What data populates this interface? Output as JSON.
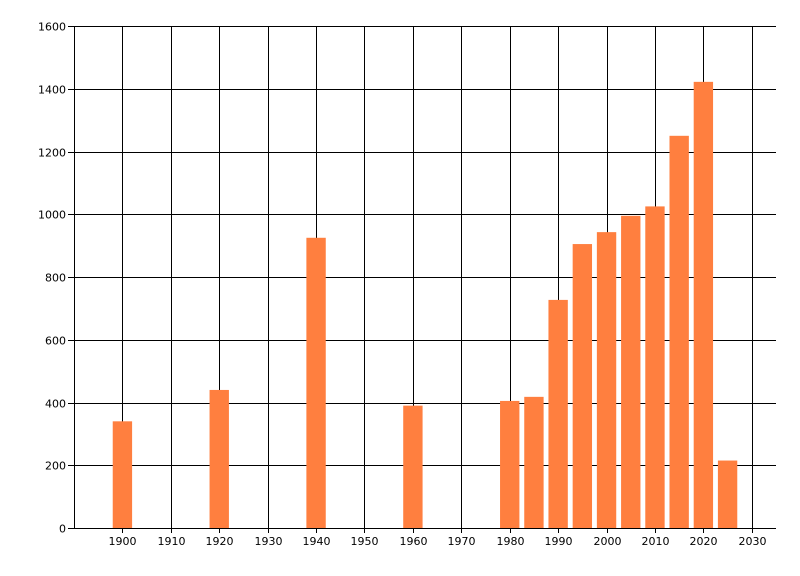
{
  "chart_data": {
    "type": "bar",
    "x": [
      1900,
      1920,
      1940,
      1960,
      1980,
      1985,
      1990,
      1995,
      2000,
      2005,
      2010,
      2015,
      2020,
      2025
    ],
    "values": [
      340,
      440,
      925,
      390,
      405,
      418,
      727,
      905,
      943,
      995,
      1025,
      1250,
      1422,
      215
    ],
    "xlim": [
      1890,
      2035
    ],
    "ylim": [
      0,
      1600
    ],
    "x_ticks": [
      1900,
      1910,
      1920,
      1930,
      1940,
      1950,
      1960,
      1970,
      1980,
      1990,
      2000,
      2010,
      2020,
      2030
    ],
    "y_ticks": [
      0,
      200,
      400,
      600,
      800,
      1000,
      1200,
      1400,
      1600
    ],
    "bar_color": "#FF7F3F",
    "grid": true,
    "title": "",
    "xlabel": "",
    "ylabel": ""
  }
}
